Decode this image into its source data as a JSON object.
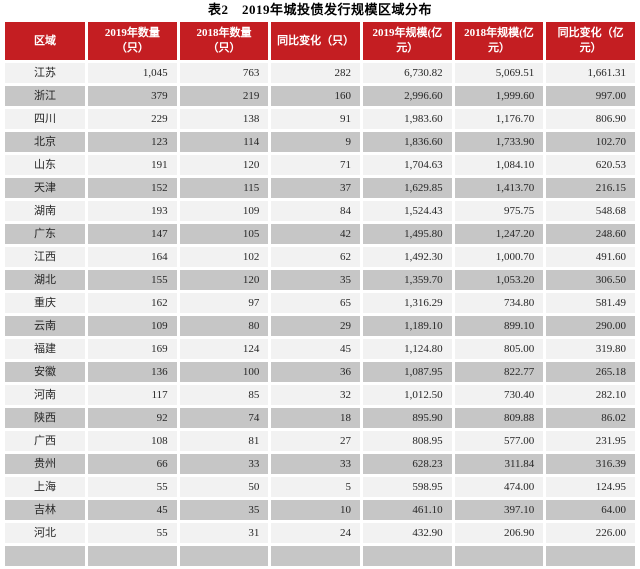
{
  "page": {
    "title": "表2　2019年城投债发行规模区域分布"
  },
  "colors": {
    "header_bg": "#C41E22",
    "header_text": "#FFFFFF",
    "row_light": "#F2F2F2",
    "row_dark": "#C6C6C6",
    "cell_text": "#262626",
    "page_bg": "#FFFFFF"
  },
  "table": {
    "headers": [
      "区域",
      "2019年数量\n（只）",
      "2018年数量\n（只）",
      "同比变化（只）",
      "2019年规模(亿\n元）",
      "2018年规模(亿\n元）",
      "同比变化（亿\n元）"
    ],
    "rows": [
      [
        "江苏",
        "1,045",
        "763",
        "282",
        "6,730.82",
        "5,069.51",
        "1,661.31"
      ],
      [
        "浙江",
        "379",
        "219",
        "160",
        "2,996.60",
        "1,999.60",
        "997.00"
      ],
      [
        "四川",
        "229",
        "138",
        "91",
        "1,983.60",
        "1,176.70",
        "806.90"
      ],
      [
        "北京",
        "123",
        "114",
        "9",
        "1,836.60",
        "1,733.90",
        "102.70"
      ],
      [
        "山东",
        "191",
        "120",
        "71",
        "1,704.63",
        "1,084.10",
        "620.53"
      ],
      [
        "天津",
        "152",
        "115",
        "37",
        "1,629.85",
        "1,413.70",
        "216.15"
      ],
      [
        "湖南",
        "193",
        "109",
        "84",
        "1,524.43",
        "975.75",
        "548.68"
      ],
      [
        "广东",
        "147",
        "105",
        "42",
        "1,495.80",
        "1,247.20",
        "248.60"
      ],
      [
        "江西",
        "164",
        "102",
        "62",
        "1,492.30",
        "1,000.70",
        "491.60"
      ],
      [
        "湖北",
        "155",
        "120",
        "35",
        "1,359.70",
        "1,053.20",
        "306.50"
      ],
      [
        "重庆",
        "162",
        "97",
        "65",
        "1,316.29",
        "734.80",
        "581.49"
      ],
      [
        "云南",
        "109",
        "80",
        "29",
        "1,189.10",
        "899.10",
        "290.00"
      ],
      [
        "福建",
        "169",
        "124",
        "45",
        "1,124.80",
        "805.00",
        "319.80"
      ],
      [
        "安徽",
        "136",
        "100",
        "36",
        "1,087.95",
        "822.77",
        "265.18"
      ],
      [
        "河南",
        "117",
        "85",
        "32",
        "1,012.50",
        "730.40",
        "282.10"
      ],
      [
        "陕西",
        "92",
        "74",
        "18",
        "895.90",
        "809.88",
        "86.02"
      ],
      [
        "广西",
        "108",
        "81",
        "27",
        "808.95",
        "577.00",
        "231.95"
      ],
      [
        "贵州",
        "66",
        "33",
        "33",
        "628.23",
        "311.84",
        "316.39"
      ],
      [
        "上海",
        "55",
        "50",
        "5",
        "598.95",
        "474.00",
        "124.95"
      ],
      [
        "吉林",
        "45",
        "35",
        "10",
        "461.10",
        "397.10",
        "64.00"
      ],
      [
        "河北",
        "55",
        "31",
        "24",
        "432.90",
        "206.90",
        "226.00"
      ]
    ],
    "partial_next_row": true
  }
}
